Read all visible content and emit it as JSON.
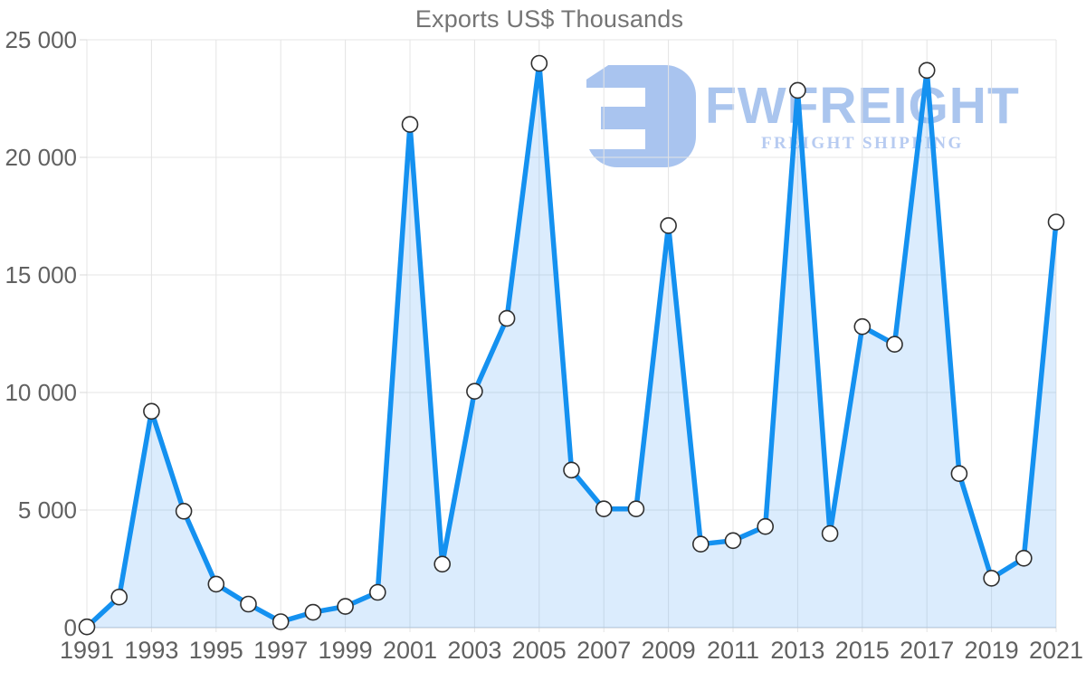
{
  "watermark": {
    "brand": "FWFREIGHT",
    "tagline": "FREIGHT SHIPPING"
  },
  "colors": {
    "line": "#1491f0",
    "fill": "rgba(90,170,245,0.22)",
    "marker_fill": "#ffffff",
    "marker_stroke": "#2f2f2f",
    "grid": "#e4e4e4",
    "axis": "#c6cdd6",
    "tick": "#d9d9d9",
    "label": "#616161",
    "title": "#757575",
    "watermark_blue": "#a9c4ef"
  },
  "chart_data": {
    "type": "area",
    "title": "Exports US$ Thousands",
    "xlabel": "",
    "ylabel": "",
    "x": [
      1991,
      1992,
      1993,
      1994,
      1995,
      1996,
      1997,
      1998,
      1999,
      2000,
      2001,
      2002,
      2003,
      2004,
      2005,
      2006,
      2007,
      2008,
      2009,
      2010,
      2011,
      2012,
      2013,
      2014,
      2015,
      2016,
      2017,
      2018,
      2019,
      2020,
      2021
    ],
    "values": [
      30,
      1300,
      9200,
      4950,
      1850,
      1000,
      250,
      650,
      900,
      1500,
      21400,
      2700,
      10050,
      13150,
      24000,
      6700,
      5050,
      5050,
      17100,
      3550,
      3700,
      4300,
      22850,
      4000,
      12800,
      12050,
      23700,
      6550,
      2100,
      2950,
      17250
    ],
    "x_tick_labels": [
      "1991",
      "1993",
      "1995",
      "1997",
      "1999",
      "2001",
      "2003",
      "2005",
      "2007",
      "2009",
      "2011",
      "2013",
      "2015",
      "2017",
      "2019",
      "2021"
    ],
    "y_tick_values": [
      0,
      5000,
      10000,
      15000,
      20000,
      25000
    ],
    "y_tick_labels": [
      "0",
      "5 000",
      "10 000",
      "15 000",
      "20 000",
      "25 000"
    ],
    "ylim": [
      0,
      25000
    ],
    "xlim": [
      1991,
      2021
    ],
    "grid": true,
    "legend": false,
    "marker": "circle"
  }
}
